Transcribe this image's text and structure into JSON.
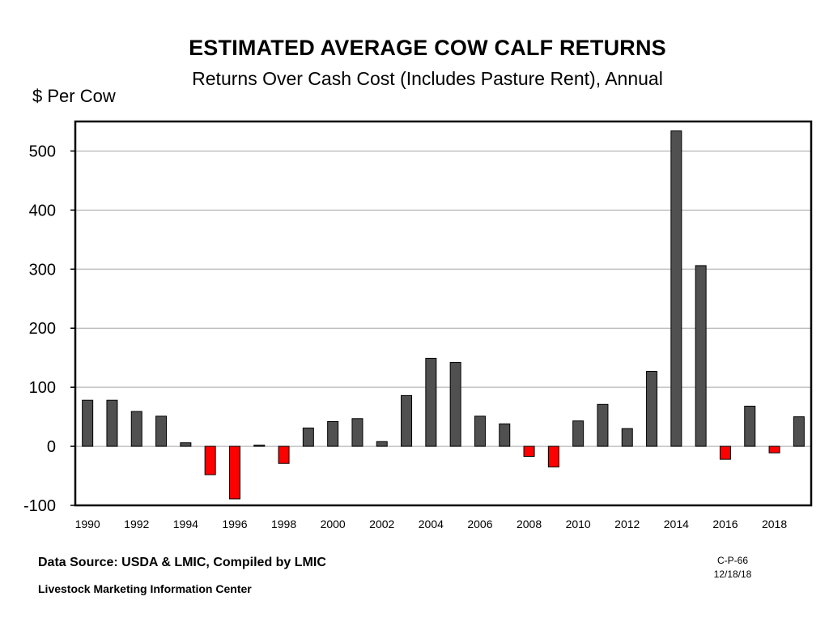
{
  "chart_data": {
    "type": "bar",
    "title": "ESTIMATED AVERAGE COW CALF RETURNS",
    "subtitle": "Returns Over Cash Cost (Includes Pasture Rent), Annual",
    "ylabel": "$ Per Cow",
    "xlabel": "",
    "ylim": [
      -100,
      550
    ],
    "yticks": [
      -100,
      0,
      100,
      200,
      300,
      400,
      500
    ],
    "xtick_labels": [
      "1990",
      "1992",
      "1994",
      "1996",
      "1998",
      "2000",
      "2002",
      "2004",
      "2006",
      "2008",
      "2010",
      "2012",
      "2014",
      "2016",
      "2018"
    ],
    "categories": [
      "1990",
      "1991",
      "1992",
      "1993",
      "1994",
      "1995",
      "1996",
      "1997",
      "1998",
      "1999",
      "2000",
      "2001",
      "2002",
      "2003",
      "2004",
      "2005",
      "2006",
      "2007",
      "2008",
      "2009",
      "2010",
      "2011",
      "2012",
      "2013",
      "2014",
      "2015",
      "2016",
      "2017",
      "2018",
      "2019"
    ],
    "values": [
      78,
      78,
      59,
      51,
      6,
      -48,
      -89,
      2,
      -29,
      31,
      42,
      47,
      8,
      86,
      149,
      142,
      51,
      38,
      -17,
      -35,
      43,
      71,
      30,
      127,
      534,
      306,
      -22,
      68,
      -11,
      50
    ],
    "grid": true,
    "legend": "none",
    "colors": {
      "positive": "#505050",
      "negative": "#ff0000"
    }
  },
  "footer": {
    "source": "Data Source:  USDA & LMIC, Compiled by LMIC",
    "organization": "Livestock Marketing Information Center",
    "chart_code": "C-P-66",
    "date": "12/18/18"
  }
}
